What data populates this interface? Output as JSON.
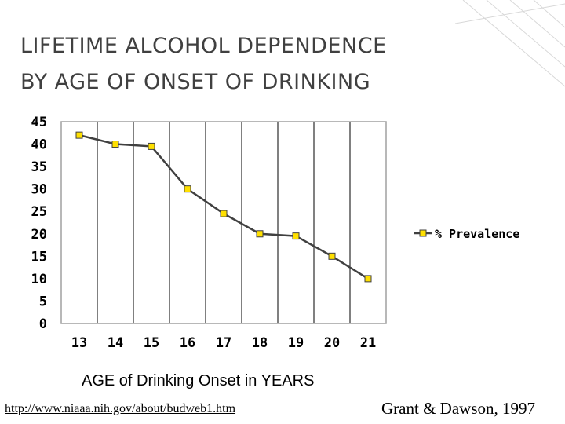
{
  "slide": {
    "title_line1": "LIFETIME ALCOHOL DEPENDENCE",
    "title_line2": "BY AGE OF ONSET OF DRINKING",
    "source_url": "http://www.niaaa.nih.gov/about/budweb1.htm",
    "citation": "Grant & Dawson, 1997"
  },
  "colors": {
    "title": "#404040",
    "line": "#404040",
    "marker_fill": "#ffe000",
    "grid": "#000000",
    "plot_border": "#a0a0a0"
  },
  "chart_data": {
    "type": "line",
    "title": "LIFETIME ALCOHOL DEPENDENCE BY AGE OF ONSET OF DRINKING",
    "xlabel": "AGE of Drinking Onset in YEARS",
    "ylabel": "",
    "categories": [
      "13",
      "14",
      "15",
      "16",
      "17",
      "18",
      "19",
      "20",
      "21"
    ],
    "series": [
      {
        "name": "% Prevalence",
        "values": [
          42,
          40,
          39.5,
          30,
          24.5,
          20,
          19.5,
          15,
          10
        ]
      }
    ],
    "yticks": [
      "0",
      "5",
      "10",
      "15",
      "20",
      "25",
      "30",
      "35",
      "40",
      "45"
    ],
    "ylim": [
      0,
      45
    ],
    "grid": "vertical",
    "legend": "right"
  }
}
